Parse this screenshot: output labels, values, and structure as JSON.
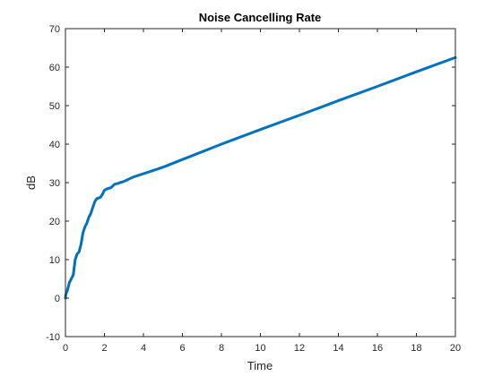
{
  "chart_data": {
    "type": "line",
    "title": "Noise Cancelling Rate",
    "xlabel": "Time",
    "ylabel": "dB",
    "xlim": [
      0,
      20
    ],
    "ylim": [
      -10,
      70
    ],
    "xticks": [
      0,
      2,
      4,
      6,
      8,
      10,
      12,
      14,
      16,
      18,
      20
    ],
    "yticks": [
      -10,
      0,
      10,
      20,
      30,
      40,
      50,
      60,
      70
    ],
    "grid": false,
    "series": [
      {
        "color": "#0072BD",
        "x": [
          0,
          0.02,
          0.1,
          0.2,
          0.3,
          0.4,
          0.5,
          0.6,
          0.7,
          0.8,
          0.9,
          1.0,
          1.1,
          1.2,
          1.3,
          1.4,
          1.5,
          1.6,
          1.7,
          1.8,
          1.9,
          2.0,
          2.1,
          2.2,
          2.3,
          2.4,
          2.5,
          2.6,
          2.7,
          2.8,
          3.0,
          3.2,
          3.5,
          4.0,
          5.0,
          6.0,
          8.0,
          10.0,
          12.0,
          14.0,
          16.0,
          18.0,
          20.0
        ],
        "y": [
          0,
          1,
          2,
          4,
          5,
          6,
          10,
          11.5,
          12,
          14,
          17,
          18.5,
          19.5,
          21,
          22,
          23.5,
          25,
          25.8,
          26,
          26.2,
          27,
          28,
          28.3,
          28.5,
          28.6,
          29,
          29.5,
          29.7,
          29.8,
          30,
          30.3,
          30.8,
          31.5,
          32.3,
          34,
          36,
          40,
          43.8,
          47.5,
          51.3,
          55,
          58.8,
          62.5
        ]
      }
    ]
  }
}
